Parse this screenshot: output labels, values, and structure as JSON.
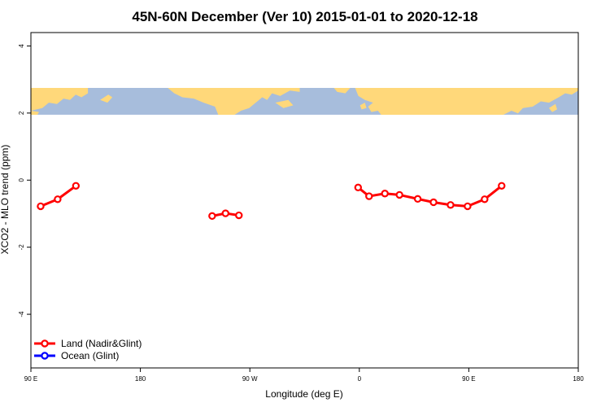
{
  "chart_data": {
    "type": "line",
    "title": "45N-60N December (Ver 10)   2015-01-01 to 2020-12-18",
    "xlabel": "Longitude (deg E)",
    "ylabel": "XCO2 - MLO trend (ppm)",
    "xlim": [
      90,
      540
    ],
    "ylim": [
      -5.6,
      4.4
    ],
    "x_ticks": [
      {
        "value": 90,
        "label": "90 E"
      },
      {
        "value": 180,
        "label": "180"
      },
      {
        "value": 270,
        "label": "90 W"
      },
      {
        "value": 360,
        "label": "0"
      },
      {
        "value": 450,
        "label": "90 E"
      },
      {
        "value": 540,
        "label": "180"
      }
    ],
    "y_ticks": [
      {
        "value": 4,
        "label": "4"
      },
      {
        "value": 2,
        "label": "2"
      },
      {
        "value": 0,
        "label": "0"
      },
      {
        "value": -2,
        "label": "-2"
      },
      {
        "value": -4,
        "label": "-4"
      }
    ],
    "map_band": {
      "y_range": [
        1.95,
        2.75
      ],
      "ocean_color": "#a7bddc",
      "land_color": "#ffd87a"
    },
    "legend": {
      "placement": "bottom-left"
    },
    "series": [
      {
        "name": "Land (Nadir&Glint)",
        "color": "#ff0000",
        "segments": [
          [
            [
              98,
              -0.78
            ],
            [
              112,
              -0.57
            ],
            [
              127,
              -0.17
            ]
          ],
          [
            [
              239,
              -1.07
            ],
            [
              250,
              -0.99
            ],
            [
              261,
              -1.05
            ]
          ],
          [
            [
              359,
              -0.22
            ],
            [
              368,
              -0.48
            ],
            [
              381,
              -0.4
            ],
            [
              393,
              -0.44
            ],
            [
              408,
              -0.56
            ],
            [
              421,
              -0.66
            ],
            [
              435,
              -0.74
            ],
            [
              449,
              -0.78
            ],
            [
              463,
              -0.57
            ],
            [
              477,
              -0.17
            ]
          ]
        ]
      },
      {
        "name": "Ocean (Glint)",
        "color": "#0000ff",
        "segments": []
      }
    ]
  }
}
